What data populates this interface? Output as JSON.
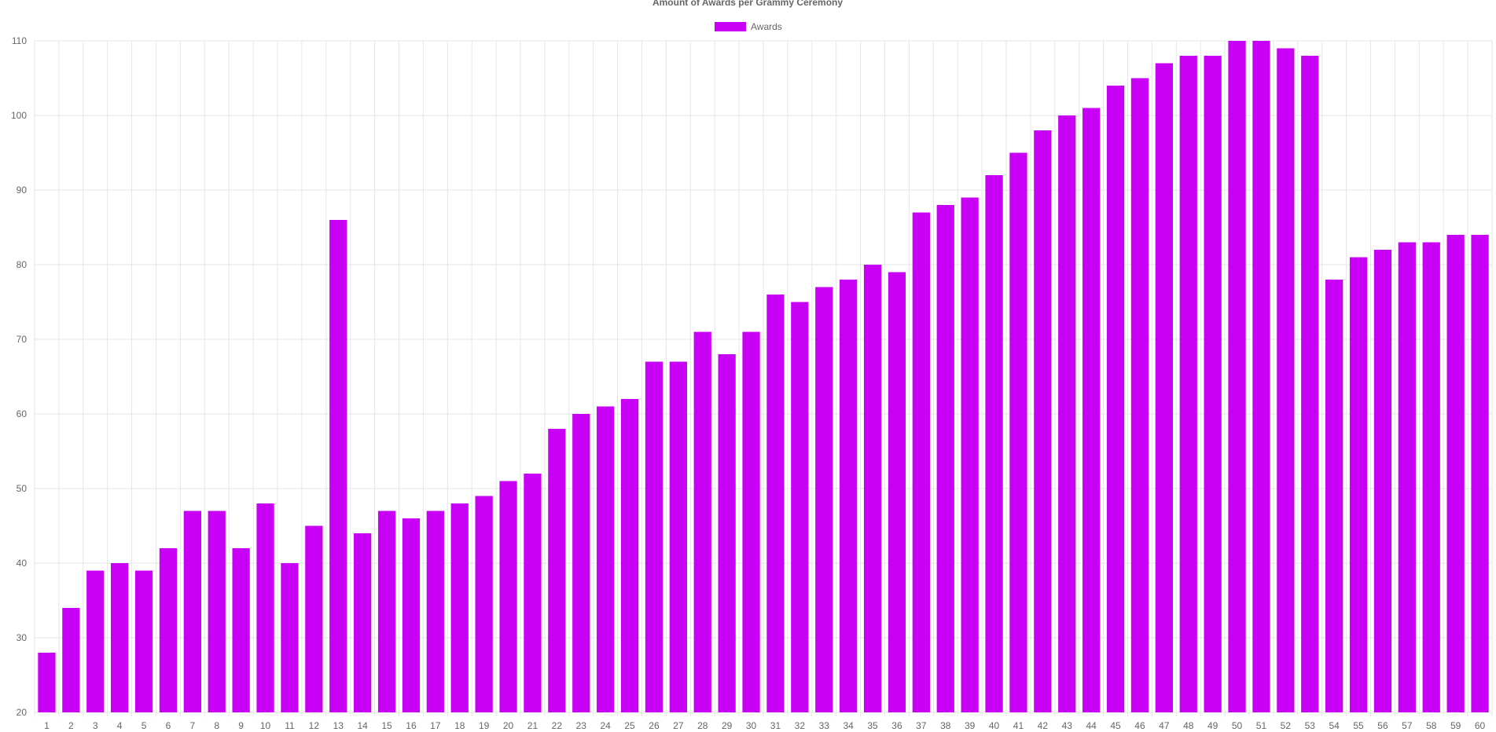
{
  "chart_data": {
    "type": "bar",
    "title": "Amount of Awards per Grammy Ceremony",
    "xlabel": "",
    "ylabel": "",
    "ylim": [
      20,
      110
    ],
    "yticks": [
      20,
      30,
      40,
      50,
      60,
      70,
      80,
      90,
      100,
      110
    ],
    "grid": true,
    "legend_position": "top-center",
    "categories": [
      "1",
      "2",
      "3",
      "4",
      "5",
      "6",
      "7",
      "8",
      "9",
      "10",
      "11",
      "12",
      "13",
      "14",
      "15",
      "16",
      "17",
      "18",
      "19",
      "20",
      "21",
      "22",
      "23",
      "24",
      "25",
      "26",
      "27",
      "28",
      "29",
      "30",
      "31",
      "32",
      "33",
      "34",
      "35",
      "36",
      "37",
      "38",
      "39",
      "40",
      "41",
      "42",
      "43",
      "44",
      "45",
      "46",
      "47",
      "48",
      "49",
      "50",
      "51",
      "52",
      "53",
      "54",
      "55",
      "56",
      "57",
      "58",
      "59",
      "60"
    ],
    "series": [
      {
        "name": "Awards",
        "color": "#c800f5",
        "values": [
          28,
          34,
          39,
          40,
          39,
          42,
          47,
          47,
          42,
          48,
          40,
          45,
          86,
          44,
          47,
          46,
          47,
          48,
          49,
          51,
          52,
          58,
          60,
          61,
          62,
          67,
          67,
          71,
          68,
          71,
          76,
          75,
          77,
          78,
          80,
          79,
          87,
          88,
          89,
          92,
          95,
          98,
          100,
          101,
          104,
          105,
          107,
          108,
          108,
          110,
          110,
          109,
          108,
          78,
          81,
          82,
          83,
          83,
          84,
          84
        ]
      }
    ]
  }
}
